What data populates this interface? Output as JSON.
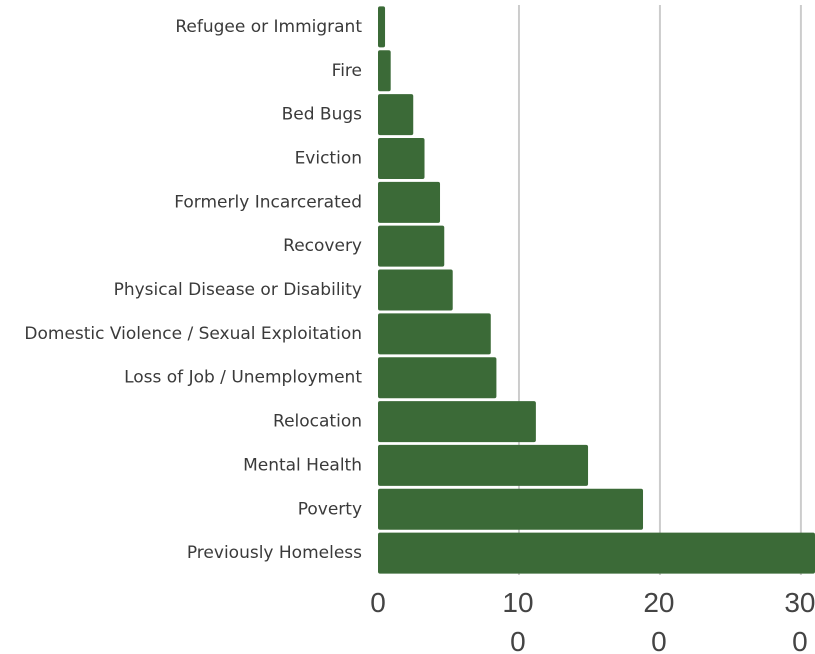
{
  "chart_data": {
    "type": "bar",
    "orientation": "horizontal",
    "categories": [
      "Refugee or Immigrant",
      "Fire",
      "Bed Bugs",
      "Eviction",
      "Formerly Incarcerated",
      "Recovery",
      "Physical Disease or Disability",
      "Domestic Violence / Sexual Exploitation",
      "Loss of Job / Unemployment",
      "Relocation",
      "Mental Health",
      "Poverty",
      "Previously Homeless"
    ],
    "values": [
      5,
      9,
      25,
      33,
      44,
      47,
      53,
      80,
      84,
      112,
      149,
      188,
      310
    ],
    "xlim": [
      0,
      310
    ],
    "xticks": [
      {
        "value": 0,
        "label": "0"
      },
      {
        "value": 100,
        "label": "10\n0"
      },
      {
        "value": 200,
        "label": "20\n0"
      },
      {
        "value": 300,
        "label": "30\n0"
      }
    ],
    "grid": "vertical",
    "colors": {
      "bar": "#3b6a37",
      "grid": "#cccccc",
      "label": "#3a3a3a",
      "tick": "#444444"
    }
  }
}
